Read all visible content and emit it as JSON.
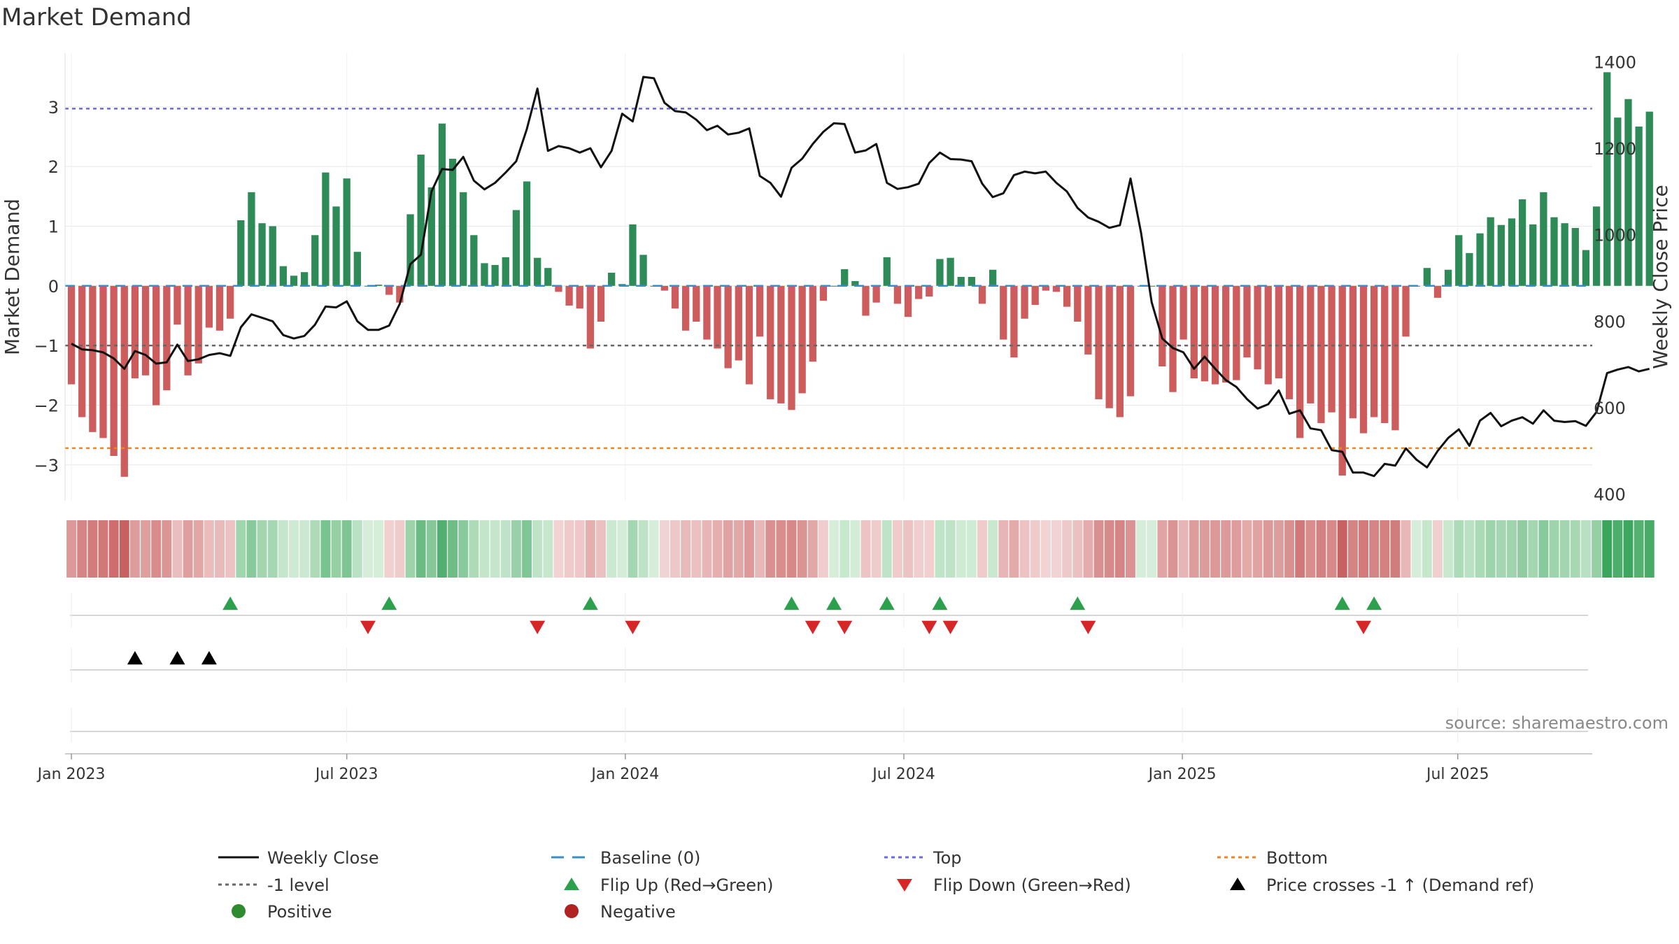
{
  "chart_data": {
    "type": "bar+line",
    "title": "Market Demand",
    "ylabel": "Market Demand",
    "y2label": "Weekly Close Price",
    "ylim": [
      -3.6,
      3.9
    ],
    "y2lim": [
      385,
      1420
    ],
    "yticks": [
      -3,
      -2,
      -1,
      0,
      1,
      2,
      3
    ],
    "ytick_labels": [
      "−3",
      "−2",
      "−1",
      "0",
      "1",
      "2",
      "3"
    ],
    "y2ticks": [
      400,
      600,
      800,
      1000,
      1200,
      1400
    ],
    "y2tick_labels": [
      "400",
      "600",
      "800",
      "1000",
      "1200",
      "1400"
    ],
    "xlim_week": [
      -0.6,
      143.6
    ],
    "xticks_week": [
      0,
      26,
      52.3,
      78.6,
      104.9,
      130.9
    ],
    "xtick_labels": [
      "Jan 2023",
      "Jul 2023",
      "Jan 2024",
      "Jul 2024",
      "Jan 2025",
      "Jul 2025"
    ],
    "reference_lines": [
      {
        "name": "Top",
        "value": 2.97,
        "color": "#6a6ad8"
      },
      {
        "name": "Bottom",
        "value": -2.72,
        "color": "#e8862a"
      },
      {
        "name": "-1 level",
        "value": -1.0,
        "color": "#666666"
      },
      {
        "name": "Baseline (0)",
        "value": 0,
        "color": "#3b8fc0"
      }
    ],
    "demand": [
      -1.65,
      -2.2,
      -2.45,
      -2.55,
      -2.85,
      -3.2,
      -1.55,
      -1.5,
      -2.0,
      -1.75,
      -0.65,
      -1.5,
      -1.3,
      -0.7,
      -0.75,
      -0.55,
      1.1,
      1.57,
      1.05,
      1.0,
      0.33,
      0.17,
      0.23,
      0.85,
      1.9,
      1.33,
      1.8,
      0.57,
      0.0,
      0.02,
      -0.15,
      -0.28,
      1.2,
      2.2,
      1.65,
      2.72,
      2.13,
      1.57,
      0.85,
      0.38,
      0.35,
      0.48,
      1.27,
      1.75,
      0.47,
      0.3,
      -0.1,
      -0.33,
      -0.38,
      -1.05,
      -0.6,
      0.22,
      0.03,
      1.03,
      0.52,
      0.0,
      -0.08,
      -0.38,
      -0.75,
      -0.6,
      -0.9,
      -1.05,
      -1.38,
      -1.25,
      -1.65,
      -0.85,
      -1.9,
      -1.97,
      -2.08,
      -1.8,
      -1.27,
      -0.25,
      0.0,
      0.28,
      0.08,
      -0.5,
      -0.28,
      0.48,
      -0.3,
      -0.52,
      -0.22,
      -0.18,
      0.45,
      0.47,
      0.15,
      0.15,
      -0.3,
      0.27,
      -0.9,
      -1.2,
      -0.55,
      -0.32,
      -0.08,
      -0.1,
      -0.35,
      -0.6,
      -1.15,
      -1.9,
      -2.05,
      -2.2,
      -1.85,
      0.0,
      0.0,
      -1.35,
      -1.78,
      -0.9,
      -1.55,
      -1.6,
      -1.65,
      -1.62,
      -1.58,
      -1.2,
      -1.4,
      -1.65,
      -1.55,
      -1.9,
      -2.55,
      -1.97,
      -2.3,
      -2.12,
      -3.18,
      -2.22,
      -2.47,
      -2.2,
      -2.3,
      -2.42,
      -0.85,
      0.0,
      0.3,
      -0.2,
      0.27,
      0.85,
      0.55,
      0.88,
      1.15,
      1.02,
      1.13,
      1.45,
      1.03,
      1.57,
      1.15,
      1.05,
      0.97,
      0.6,
      1.33,
      3.58,
      2.82,
      3.13,
      2.67,
      2.92
    ],
    "close": [
      748,
      735,
      733,
      728,
      714,
      690,
      731,
      722,
      702,
      705,
      746,
      708,
      712,
      722,
      726,
      720,
      786,
      816,
      808,
      800,
      768,
      760,
      766,
      792,
      834,
      832,
      846,
      800,
      780,
      780,
      790,
      840,
      932,
      954,
      1100,
      1152,
      1150,
      1180,
      1125,
      1105,
      1120,
      1144,
      1170,
      1244,
      1338,
      1194,
      1205,
      1200,
      1190,
      1200,
      1156,
      1194,
      1280,
      1262,
      1365,
      1362,
      1305,
      1286,
      1283,
      1266,
      1242,
      1252,
      1232,
      1236,
      1246,
      1136,
      1120,
      1088,
      1155,
      1176,
      1210,
      1238,
      1258,
      1256,
      1190,
      1195,
      1210,
      1120,
      1106,
      1110,
      1118,
      1166,
      1190,
      1175,
      1174,
      1170,
      1118,
      1087,
      1096,
      1138,
      1146,
      1142,
      1146,
      1120,
      1100,
      1062,
      1040,
      1030,
      1016,
      1022,
      1130,
      1004,
      844,
      760,
      738,
      728,
      690,
      718,
      690,
      664,
      648,
      620,
      598,
      608,
      640,
      586,
      594,
      552,
      548,
      502,
      498,
      450,
      450,
      442,
      470,
      466,
      506,
      480,
      462,
      500,
      530,
      550,
      512,
      570,
      588,
      557,
      570,
      578,
      563,
      594,
      570,
      567,
      569,
      558,
      590,
      680,
      688,
      694,
      684,
      690
    ],
    "state_colors": {
      "positive_strong": "#3aa55c",
      "positive_weak": "#d6eed9",
      "negative_strong": "#c86060",
      "negative_weak": "#f3d6d6"
    },
    "flip_up_weeks": [
      15,
      30,
      49,
      68,
      72,
      77,
      82,
      95,
      120,
      123
    ],
    "flip_down_weeks": [
      28,
      44,
      53,
      70,
      73,
      81,
      83,
      96,
      122
    ],
    "price_cross_weeks": [
      6,
      10,
      13
    ],
    "marker_colors": {
      "flip_up": "#2ca04c",
      "flip_down": "#d62728",
      "price_cross": "#000000",
      "positive": "#2e8b2e",
      "negative": "#b22222"
    },
    "line_color": "#111111",
    "bar_positive_color": "#2e8b57",
    "bar_negative_color": "#cd5c5c",
    "legend": [
      {
        "label": "Weekly Close",
        "kind": "line",
        "color": "#111111"
      },
      {
        "label": "Baseline (0)",
        "kind": "dash",
        "color": "#3b8fc0"
      },
      {
        "label": "Top",
        "kind": "dot",
        "color": "#6a6ad8"
      },
      {
        "label": "Bottom",
        "kind": "dot",
        "color": "#e8862a"
      },
      {
        "label": "-1 level",
        "kind": "dot",
        "color": "#666666"
      },
      {
        "label": "Flip Up (Red→Green)",
        "kind": "tri-up",
        "color": "#2ca04c"
      },
      {
        "label": "Flip Down (Green→Red)",
        "kind": "tri-down",
        "color": "#d62728"
      },
      {
        "label": "Price crosses -1 ↑ (Demand ref)",
        "kind": "tri-up",
        "color": "#000000"
      },
      {
        "label": "Positive",
        "kind": "circle",
        "color": "#2e8b2e"
      },
      {
        "label": "Negative",
        "kind": "circle",
        "color": "#b22222"
      }
    ],
    "source": "source: sharemaestro.com"
  }
}
